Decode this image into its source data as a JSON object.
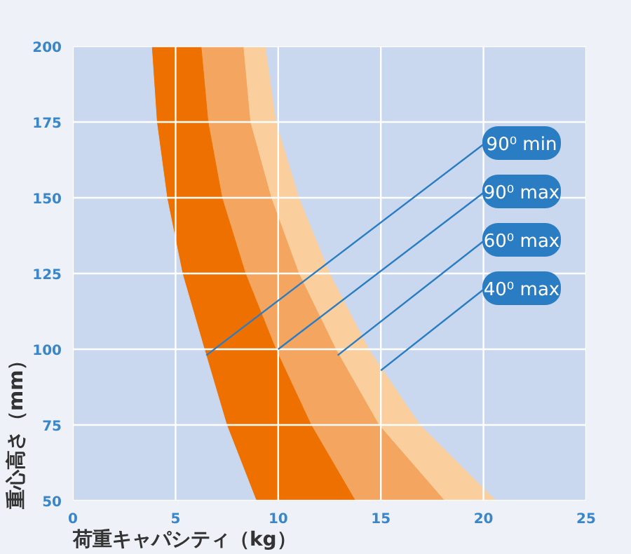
{
  "chart_data": {
    "type": "area",
    "orientation": "horizontal",
    "xlabel": "荷重キャパシティ（kg）",
    "ylabel": "重心高さ（mm）",
    "xlim": [
      0,
      25
    ],
    "xticks": [
      0,
      5,
      10,
      15,
      20,
      25
    ],
    "ylim": [
      50,
      200
    ],
    "yticks": [
      50,
      75,
      100,
      125,
      150,
      175,
      200
    ],
    "grid": true,
    "series": [
      {
        "color": "#c9d8ee",
        "x": [
          200,
          175,
          150,
          125,
          100,
          75,
          50
        ],
        "values": [
          3.83,
          4.08,
          4.58,
          5.33,
          6.4,
          7.49,
          8.93
        ]
      },
      {
        "color": "#ee7100",
        "x": [
          200,
          175,
          150,
          125,
          100,
          75,
          50
        ],
        "values": [
          6.24,
          6.58,
          7.26,
          8.4,
          9.88,
          11.6,
          13.75
        ]
      },
      {
        "color": "#f4a660",
        "x": [
          200,
          175,
          150,
          125,
          100,
          75,
          50
        ],
        "values": [
          8.29,
          8.63,
          9.65,
          11.0,
          12.8,
          14.9,
          18.1
        ]
      },
      {
        "color": "#fbcf9d",
        "x": [
          200,
          175,
          150,
          125,
          100,
          75,
          50
        ],
        "values": [
          9.36,
          9.88,
          11.0,
          12.5,
          14.4,
          16.9,
          20.6
        ]
      }
    ],
    "annotations": [
      {
        "text": "90⁰ min",
        "x": 6.5,
        "y": 98
      },
      {
        "text": "90⁰ max",
        "x": 10,
        "y": 100
      },
      {
        "text": "60⁰ max",
        "x": 12.9,
        "y": 98
      },
      {
        "text": "40⁰ max",
        "x": 15,
        "y": 93
      }
    ]
  }
}
